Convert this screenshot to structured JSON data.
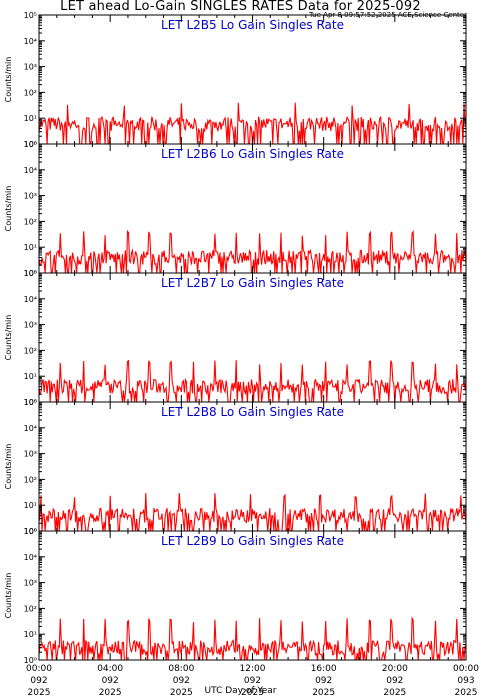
{
  "page": {
    "title": "LET ahead Lo-Gain SINGLES RATES Data for 2025-092",
    "timestamp": "Tue Apr  8 09:57:52 2025 ACE Science Center",
    "x_axis_title": "UTC Day of Year"
  },
  "colors": {
    "series": "#ff0000",
    "panel_title": "#0000cc",
    "axes": "#000000"
  },
  "chart_data": [
    {
      "type": "line",
      "title": "LET L2B5 Lo Gain Singles Rate",
      "ylabel": "Counts/min",
      "yscale": "log",
      "ylim": [
        1,
        100000
      ],
      "y_tick_labels": [
        "10⁰",
        "10¹",
        "10²",
        "10³",
        "10⁴",
        "10⁵"
      ],
      "baseline": 6,
      "spike_times": [
        1.6,
        4.8,
        8.0,
        11.2,
        14.4,
        17.6,
        20.8,
        23.9
      ],
      "spike_value": 35
    },
    {
      "type": "line",
      "title": "LET L2B6 Lo Gain Singles Rate",
      "ylabel": "Counts/min",
      "yscale": "log",
      "ylim": [
        1,
        100000
      ],
      "y_tick_labels": [
        "10⁰",
        "10¹",
        "10²",
        "10³",
        "10⁴",
        "10⁵"
      ],
      "baseline": 4,
      "spike_times": [
        1.2,
        2.5,
        3.7,
        5.0,
        6.2,
        7.4,
        9.9,
        11.1,
        12.4,
        13.6,
        14.8,
        16.1,
        17.3,
        18.6,
        19.8,
        21.0,
        22.3,
        23.5
      ],
      "spike_value": 35
    },
    {
      "type": "line",
      "title": "LET L2B7 Lo Gain Singles Rate",
      "ylabel": "Counts/min",
      "yscale": "log",
      "ylim": [
        1,
        100000
      ],
      "y_tick_labels": [
        "10⁰",
        "10¹",
        "10²",
        "10³",
        "10⁴",
        "10⁵"
      ],
      "baseline": 4,
      "spike_times": [
        1.2,
        2.5,
        3.7,
        5.0,
        6.2,
        7.4,
        8.7,
        9.9,
        11.1,
        12.4,
        13.6,
        14.8,
        16.1,
        17.3,
        18.6,
        19.8,
        21.0,
        22.3,
        23.5
      ],
      "spike_value": 35
    },
    {
      "type": "line",
      "title": "LET L2B8 Lo Gain Singles Rate",
      "ylabel": "Counts/min",
      "yscale": "log",
      "ylim": [
        1,
        100000
      ],
      "y_tick_labels": [
        "10⁰",
        "10¹",
        "10²",
        "10³",
        "10⁴",
        "10⁵"
      ],
      "baseline": 4,
      "spike_times": [
        0.1,
        2.0,
        4.0,
        6.0,
        7.9,
        9.9,
        11.9,
        13.8,
        15.8,
        17.8,
        19.8,
        21.7,
        23.7
      ],
      "spike_value": 25
    },
    {
      "type": "line",
      "title": "LET L2B9 Lo Gain Singles Rate",
      "ylabel": "Counts/min",
      "yscale": "log",
      "ylim": [
        1,
        100000
      ],
      "y_tick_labels": [
        "10⁰",
        "10¹",
        "10²",
        "10³",
        "10⁴",
        "10⁵"
      ],
      "baseline": 3,
      "spike_times": [
        1.2,
        2.5,
        3.7,
        5.0,
        6.2,
        7.4,
        8.7,
        9.9,
        11.1,
        12.4,
        13.6,
        14.8,
        16.1,
        17.3,
        18.6,
        19.8,
        21.0,
        22.3,
        23.5
      ],
      "spike_value": 35
    }
  ],
  "x_axis": {
    "range_hours": [
      0,
      24
    ],
    "ticks": [
      {
        "hour": 0,
        "time": "00:00",
        "day": "092",
        "year": "2025"
      },
      {
        "hour": 4,
        "time": "04:00",
        "day": "092",
        "year": "2025"
      },
      {
        "hour": 8,
        "time": "08:00",
        "day": "092",
        "year": "2025"
      },
      {
        "hour": 12,
        "time": "12:00",
        "day": "092",
        "year": "2025"
      },
      {
        "hour": 16,
        "time": "16:00",
        "day": "092",
        "year": "2025"
      },
      {
        "hour": 20,
        "time": "20:00",
        "day": "092",
        "year": "2025"
      },
      {
        "hour": 24,
        "time": "00:00",
        "day": "093",
        "year": "2025"
      }
    ]
  }
}
